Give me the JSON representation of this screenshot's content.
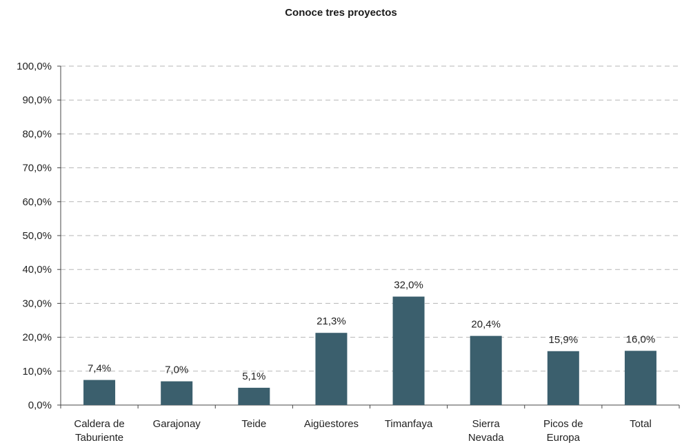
{
  "chart_data": {
    "type": "bar",
    "title": "Conoce tres proyectos",
    "categories": [
      [
        "Caldera de",
        "Taburiente"
      ],
      [
        "Garajonay"
      ],
      [
        "Teide"
      ],
      [
        "Aigüestores"
      ],
      [
        "Timanfaya"
      ],
      [
        "Sierra",
        "Nevada"
      ],
      [
        "Picos de",
        "Europa"
      ],
      [
        "Total"
      ]
    ],
    "values": [
      7.4,
      7.0,
      5.1,
      21.3,
      32.0,
      20.4,
      15.9,
      16.0
    ],
    "value_labels": [
      "7,4%",
      "7,0%",
      "5,1%",
      "21,3%",
      "32,0%",
      "20,4%",
      "15,9%",
      "16,0%"
    ],
    "ylim": [
      0,
      100
    ],
    "yticks": [
      0,
      10,
      20,
      30,
      40,
      50,
      60,
      70,
      80,
      90,
      100
    ],
    "ytick_labels": [
      "0,0%",
      "10,0%",
      "20,0%",
      "30,0%",
      "40,0%",
      "50,0%",
      "60,0%",
      "70,0%",
      "80,0%",
      "90,0%",
      "100,0%"
    ],
    "grid": true,
    "bar_color": "#3b5f6d"
  }
}
